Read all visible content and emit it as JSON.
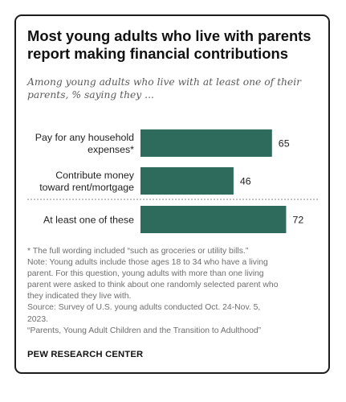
{
  "title_line1": "Most young adults who live with parents",
  "title_line2": "report making financial contributions",
  "subtitle_line1": "Among young adults who live with at least one of their",
  "subtitle_line2": "parents, % saying they ...",
  "bar_color": "#2f6b5d",
  "chart_data": {
    "type": "bar",
    "orientation": "horizontal",
    "categories": [
      [
        "Pay for any household",
        "expenses*"
      ],
      [
        "Contribute money",
        "toward rent/mortgage"
      ],
      [
        "At least one of these"
      ]
    ],
    "values": [
      65,
      46,
      72
    ],
    "xlim": [
      0,
      100
    ],
    "grid": false
  },
  "notes": [
    "* The full wording included “such as groceries or utility bills.”",
    "Note: Young adults include those ages 18 to 34 who have a living",
    "parent. For this question, young adults with more than one living",
    "parent were asked to think about one randomly selected parent who",
    "they indicated they live with.",
    "Source: Survey of U.S. young adults conducted Oct. 24-Nov. 5,",
    "2023.",
    "“Parents, Young Adult Children and the Transition to Adulthood”"
  ],
  "brand": "PEW RESEARCH CENTER"
}
